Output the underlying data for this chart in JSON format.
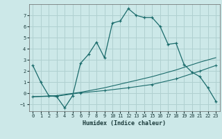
{
  "title": "",
  "xlabel": "Humidex (Indice chaleur)",
  "bg_color": "#cce8e8",
  "grid_color": "#b0d0d0",
  "line_color": "#1a6b6b",
  "xlim": [
    -0.5,
    23.5
  ],
  "ylim": [
    -1.6,
    8.0
  ],
  "yticks": [
    -1,
    0,
    1,
    2,
    3,
    4,
    5,
    6,
    7
  ],
  "xticks": [
    0,
    1,
    2,
    3,
    4,
    5,
    6,
    7,
    8,
    9,
    10,
    11,
    12,
    13,
    14,
    15,
    16,
    17,
    18,
    19,
    20,
    21,
    22,
    23
  ],
  "curve1_x": [
    0,
    1,
    2,
    3,
    4,
    5,
    6,
    7,
    8,
    9,
    10,
    11,
    12,
    13,
    14,
    15,
    16,
    17,
    18,
    19,
    20,
    21,
    22,
    23
  ],
  "curve1_y": [
    2.5,
    1.0,
    -0.2,
    -0.3,
    -1.3,
    -0.2,
    2.7,
    3.5,
    4.6,
    3.2,
    6.3,
    6.5,
    7.6,
    7.0,
    6.8,
    6.8,
    6.0,
    4.4,
    4.5,
    2.6,
    1.9,
    1.5,
    0.5,
    -0.7
  ],
  "curve2_x": [
    0,
    3,
    6,
    9,
    12,
    15,
    18,
    21,
    23
  ],
  "curve2_y": [
    -0.3,
    -0.2,
    0.1,
    0.5,
    1.0,
    1.5,
    2.1,
    2.8,
    3.2
  ],
  "curve3_x": [
    0,
    3,
    6,
    9,
    12,
    15,
    18,
    21,
    23
  ],
  "curve3_y": [
    -0.3,
    -0.25,
    0.05,
    0.25,
    0.5,
    0.8,
    1.3,
    2.0,
    2.5
  ]
}
